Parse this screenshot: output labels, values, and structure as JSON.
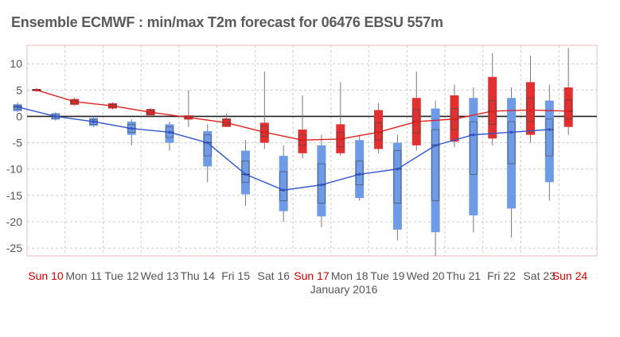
{
  "title": "Ensemble ECMWF : min/max T2m forecast for 06476 EBSU 557m",
  "colors": {
    "max": "#e03030",
    "min": "#6f9be6",
    "max_line": "#dd2222",
    "min_line": "#3355cc",
    "weekday_label": "#555555",
    "sunday_label": "#cc0000",
    "grid": "#cccccc",
    "frame": "#f0b8b8",
    "zero_line": "#222222"
  },
  "chart_data": {
    "type": "boxplot",
    "title": "Ensemble ECMWF : min/max T2m forecast for 06476 EBSU 557m",
    "xlabel": "January 2016",
    "ylabel": "",
    "ylim": [
      -26.5,
      13.5
    ],
    "yticks": [
      10,
      5,
      0,
      -5,
      -10,
      -15,
      -20,
      -25
    ],
    "grid": true,
    "categories": [
      "Sun 10",
      "Mon 11",
      "Tue 12",
      "Wed 13",
      "Thu 14",
      "Fri 15",
      "Sat 16",
      "Sun 17",
      "Mon 18",
      "Tue 19",
      "Wed 20",
      "Thu 21",
      "Fri 22",
      "Sat 23",
      "Sun 24"
    ],
    "sundays": [
      "Sun 10",
      "Sun 17",
      "Sun 24"
    ],
    "series": [
      {
        "kind": "max",
        "x": [
          10.25,
          11.25,
          12.25,
          13.25,
          14.25,
          15.25,
          16.25,
          17.25,
          18.25,
          19.25,
          20.25,
          21.25,
          22.25,
          23.25,
          24.25
        ],
        "median": [
          5.0,
          2.8,
          2.0,
          0.8,
          -0.2,
          -1.2,
          -3.0,
          -4.5,
          -4.3,
          -3.0,
          -1.0,
          -0.5,
          1.0,
          1.2,
          1.0
        ],
        "whisker_low": [
          4.8,
          2.0,
          1.3,
          0.0,
          -2.0,
          -2.0,
          -6.2,
          -8.0,
          -7.5,
          -7.0,
          -6.5,
          -5.8,
          -5.5,
          -5.0,
          -3.5
        ],
        "q10": [
          4.85,
          2.2,
          1.5,
          0.2,
          -0.6,
          -2.0,
          -5.0,
          -7.0,
          -7.0,
          -6.2,
          -5.5,
          -4.8,
          -4.2,
          -3.5,
          -2.0
        ],
        "q25": [
          4.9,
          2.4,
          1.7,
          0.4,
          -0.4,
          -1.6,
          -3.8,
          -5.5,
          -5.8,
          -4.5,
          -3.2,
          -2.5,
          -1.5,
          -1.0,
          -0.5
        ],
        "q75": [
          5.1,
          3.1,
          2.3,
          1.2,
          0.0,
          -0.6,
          -1.8,
          -3.5,
          -3.0,
          -1.2,
          1.3,
          1.5,
          3.0,
          3.5,
          3.2
        ],
        "q90": [
          5.2,
          3.3,
          2.5,
          1.4,
          0.2,
          -0.4,
          -1.2,
          -2.5,
          -1.5,
          1.2,
          3.5,
          4.0,
          7.5,
          6.5,
          5.5
        ],
        "whisker_high": [
          5.3,
          3.6,
          2.7,
          1.6,
          5.0,
          0.5,
          8.5,
          4.0,
          6.5,
          2.5,
          8.5,
          6.0,
          12.0,
          11.5,
          13.0
        ]
      },
      {
        "kind": "min",
        "x": [
          9.75,
          10.75,
          11.75,
          12.75,
          13.75,
          14.75,
          15.75,
          16.75,
          17.75,
          18.75,
          19.75,
          20.75,
          21.75,
          22.75,
          23.75
        ],
        "median": [
          1.8,
          0.0,
          -1.0,
          -2.3,
          -3.0,
          -5.0,
          -11.0,
          -14.0,
          -13.0,
          -11.0,
          -10.0,
          -5.5,
          -3.5,
          -3.0,
          -2.5
        ],
        "whisker_low": [
          0.8,
          -0.8,
          -2.0,
          -5.5,
          -6.5,
          -12.5,
          -17.0,
          -20.0,
          -21.0,
          -16.0,
          -23.5,
          -26.5,
          -22.0,
          -23.0,
          -16.0
        ],
        "q10": [
          1.0,
          -0.6,
          -1.8,
          -3.5,
          -5.0,
          -9.5,
          -14.8,
          -18.0,
          -19.0,
          -15.5,
          -21.5,
          -22.0,
          -18.8,
          -17.5,
          -12.5
        ],
        "q25": [
          1.3,
          -0.4,
          -1.5,
          -3.0,
          -4.0,
          -7.5,
          -12.5,
          -16.0,
          -16.5,
          -13.0,
          -16.5,
          -16.0,
          -11.0,
          -9.0,
          -7.5
        ],
        "q75": [
          2.1,
          0.4,
          -0.6,
          -1.5,
          -2.0,
          -3.5,
          -8.5,
          -10.5,
          -9.0,
          -8.5,
          -6.5,
          -2.5,
          -1.0,
          -1.0,
          -0.5
        ],
        "q90": [
          2.3,
          0.6,
          -0.3,
          -1.0,
          -1.5,
          -2.8,
          -6.5,
          -7.5,
          -5.5,
          -4.5,
          -5.0,
          1.5,
          3.5,
          3.5,
          3.0
        ],
        "whisker_high": [
          2.6,
          0.8,
          0.0,
          -0.5,
          -1.0,
          -1.5,
          -4.5,
          -5.5,
          -3.5,
          -3.5,
          -3.5,
          3.0,
          5.5,
          5.5,
          6.0
        ]
      }
    ]
  }
}
